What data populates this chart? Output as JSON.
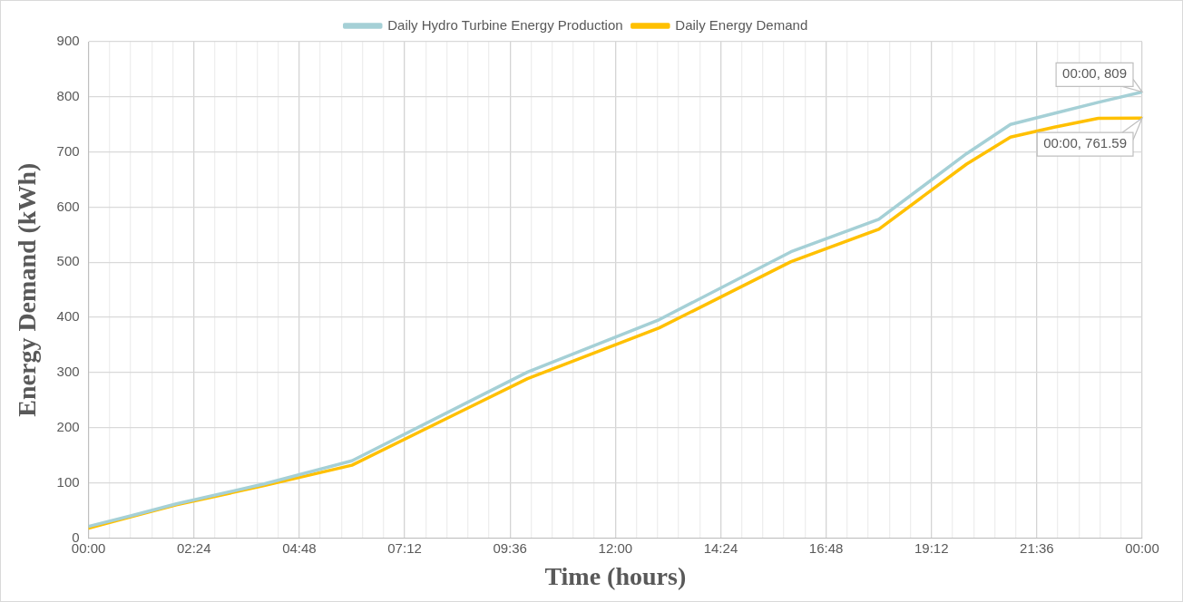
{
  "chart_data": {
    "type": "line",
    "xlabel": "Time (hours)",
    "ylabel": "Energy Demand (kWh)",
    "x": [
      0,
      1,
      2,
      4,
      6,
      10,
      13,
      16,
      18,
      20,
      21,
      22,
      23,
      24
    ],
    "series": [
      {
        "name": "Daily Hydro Turbine Energy Production",
        "color": "#a5d0d6",
        "values": [
          21,
          41,
          62,
          98,
          140,
          301,
          396,
          519,
          578,
          697,
          750,
          770,
          790,
          809
        ]
      },
      {
        "name": "Daily Energy Demand",
        "color": "#ffc000",
        "values": [
          18,
          39,
          60,
          95,
          132,
          289,
          381,
          501,
          560,
          678,
          727,
          745,
          761,
          761.59
        ]
      }
    ],
    "xlim": [
      0,
      24
    ],
    "xticks": [
      {
        "value": 0,
        "label": "00:00"
      },
      {
        "value": 0.48,
        "label": null
      },
      {
        "value": 0.96,
        "label": null
      },
      {
        "value": 1.44,
        "label": null
      },
      {
        "value": 1.92,
        "label": null
      },
      {
        "value": 2.4,
        "label": "02:24"
      },
      {
        "value": 2.88,
        "label": null
      },
      {
        "value": 3.36,
        "label": null
      },
      {
        "value": 3.84,
        "label": null
      },
      {
        "value": 4.32,
        "label": null
      },
      {
        "value": 4.8,
        "label": "04:48"
      },
      {
        "value": 5.28,
        "label": null
      },
      {
        "value": 5.76,
        "label": null
      },
      {
        "value": 6.24,
        "label": null
      },
      {
        "value": 6.72,
        "label": null
      },
      {
        "value": 7.2,
        "label": "07:12"
      },
      {
        "value": 7.68,
        "label": null
      },
      {
        "value": 8.16,
        "label": null
      },
      {
        "value": 8.64,
        "label": null
      },
      {
        "value": 9.12,
        "label": null
      },
      {
        "value": 9.6,
        "label": "09:36"
      },
      {
        "value": 10.08,
        "label": null
      },
      {
        "value": 10.56,
        "label": null
      },
      {
        "value": 11.04,
        "label": null
      },
      {
        "value": 11.52,
        "label": null
      },
      {
        "value": 12,
        "label": "12:00"
      },
      {
        "value": 12.48,
        "label": null
      },
      {
        "value": 12.96,
        "label": null
      },
      {
        "value": 13.44,
        "label": null
      },
      {
        "value": 13.92,
        "label": null
      },
      {
        "value": 14.4,
        "label": "14:24"
      },
      {
        "value": 14.88,
        "label": null
      },
      {
        "value": 15.36,
        "label": null
      },
      {
        "value": 15.84,
        "label": null
      },
      {
        "value": 16.32,
        "label": null
      },
      {
        "value": 16.8,
        "label": "16:48"
      },
      {
        "value": 17.28,
        "label": null
      },
      {
        "value": 17.76,
        "label": null
      },
      {
        "value": 18.24,
        "label": null
      },
      {
        "value": 18.72,
        "label": null
      },
      {
        "value": 19.2,
        "label": "19:12"
      },
      {
        "value": 19.68,
        "label": null
      },
      {
        "value": 20.16,
        "label": null
      },
      {
        "value": 20.64,
        "label": null
      },
      {
        "value": 21.12,
        "label": null
      },
      {
        "value": 21.6,
        "label": "21:36"
      },
      {
        "value": 22.08,
        "label": null
      },
      {
        "value": 22.56,
        "label": null
      },
      {
        "value": 23.04,
        "label": null
      },
      {
        "value": 23.52,
        "label": null
      },
      {
        "value": 24,
        "label": "00:00"
      }
    ],
    "ylim": [
      0,
      900
    ],
    "yticks": [
      0,
      100,
      200,
      300,
      400,
      500,
      600,
      700,
      800,
      900
    ],
    "grid": true,
    "legend": "top",
    "marker": "none",
    "line_style": "solid",
    "annotations": [
      {
        "text": "00:00, 809",
        "x": 24,
        "y": 809
      },
      {
        "text": "00:00, 761.59",
        "x": 24,
        "y": 761.59
      }
    ]
  }
}
